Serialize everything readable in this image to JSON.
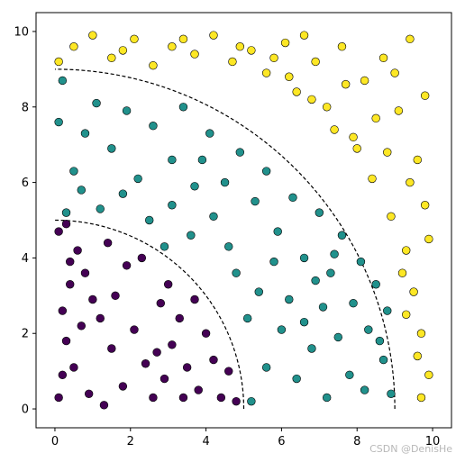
{
  "chart_data": {
    "type": "scatter",
    "title": "",
    "xlabel": "",
    "ylabel": "",
    "xlim": [
      -0.5,
      10.5
    ],
    "ylim": [
      -0.5,
      10.5
    ],
    "x_ticks": [
      0,
      2,
      4,
      6,
      8,
      10
    ],
    "y_ticks": [
      0,
      2,
      4,
      6,
      8,
      10
    ],
    "grid": false,
    "arcs": [
      {
        "radius": 5,
        "center": [
          0,
          0
        ],
        "style": "dashed",
        "color": "#000000"
      },
      {
        "radius": 9,
        "center": [
          0,
          0
        ],
        "style": "dashed",
        "color": "#000000"
      }
    ],
    "series": [
      {
        "color": "#440154",
        "points": [
          [
            0.1,
            0.3
          ],
          [
            0.2,
            0.9
          ],
          [
            0.3,
            1.8
          ],
          [
            0.2,
            2.6
          ],
          [
            0.4,
            3.3
          ],
          [
            0.1,
            4.7
          ],
          [
            0.3,
            4.9
          ],
          [
            0.6,
            4.2
          ],
          [
            0.8,
            3.6
          ],
          [
            1.0,
            2.9
          ],
          [
            0.7,
            2.2
          ],
          [
            0.5,
            1.1
          ],
          [
            0.9,
            0.4
          ],
          [
            1.3,
            0.1
          ],
          [
            1.5,
            1.6
          ],
          [
            1.2,
            2.4
          ],
          [
            1.6,
            3.0
          ],
          [
            1.9,
            3.8
          ],
          [
            2.1,
            2.1
          ],
          [
            2.4,
            1.2
          ],
          [
            2.6,
            0.3
          ],
          [
            2.9,
            0.8
          ],
          [
            3.1,
            1.7
          ],
          [
            2.8,
            2.8
          ],
          [
            3.3,
            2.4
          ],
          [
            3.0,
            3.3
          ],
          [
            3.5,
            1.1
          ],
          [
            3.8,
            0.5
          ],
          [
            4.0,
            2.0
          ],
          [
            4.2,
            1.3
          ],
          [
            4.4,
            0.3
          ],
          [
            4.6,
            1.0
          ],
          [
            4.8,
            0.2
          ],
          [
            3.7,
            2.9
          ],
          [
            2.3,
            4.0
          ],
          [
            1.4,
            4.4
          ],
          [
            0.4,
            3.9
          ],
          [
            1.8,
            0.6
          ],
          [
            2.7,
            1.5
          ],
          [
            3.4,
            0.3
          ]
        ]
      },
      {
        "color": "#21918c",
        "points": [
          [
            0.1,
            7.6
          ],
          [
            0.2,
            8.7
          ],
          [
            0.5,
            6.3
          ],
          [
            0.8,
            7.3
          ],
          [
            1.1,
            8.1
          ],
          [
            1.5,
            6.9
          ],
          [
            1.9,
            7.9
          ],
          [
            2.2,
            6.1
          ],
          [
            2.6,
            7.5
          ],
          [
            3.1,
            6.6
          ],
          [
            3.4,
            8.0
          ],
          [
            3.7,
            5.9
          ],
          [
            4.1,
            7.3
          ],
          [
            4.5,
            6.0
          ],
          [
            4.9,
            6.8
          ],
          [
            5.3,
            5.5
          ],
          [
            5.6,
            6.3
          ],
          [
            5.9,
            4.7
          ],
          [
            6.3,
            5.6
          ],
          [
            6.6,
            4.0
          ],
          [
            7.0,
            5.2
          ],
          [
            7.3,
            3.6
          ],
          [
            7.6,
            4.6
          ],
          [
            7.9,
            2.8
          ],
          [
            8.1,
            3.9
          ],
          [
            8.3,
            2.1
          ],
          [
            8.5,
            3.3
          ],
          [
            8.7,
            1.3
          ],
          [
            8.8,
            2.6
          ],
          [
            8.9,
            0.4
          ],
          [
            5.2,
            0.2
          ],
          [
            5.6,
            1.1
          ],
          [
            6.0,
            2.1
          ],
          [
            6.4,
            0.8
          ],
          [
            6.8,
            1.6
          ],
          [
            7.2,
            0.3
          ],
          [
            7.5,
            1.9
          ],
          [
            7.8,
            0.9
          ],
          [
            8.2,
            0.5
          ],
          [
            5.4,
            3.1
          ],
          [
            5.8,
            3.9
          ],
          [
            6.2,
            2.9
          ],
          [
            6.6,
            2.3
          ],
          [
            7.1,
            2.7
          ],
          [
            4.6,
            4.3
          ],
          [
            4.2,
            5.1
          ],
          [
            3.6,
            4.6
          ],
          [
            3.1,
            5.4
          ],
          [
            2.5,
            5.0
          ],
          [
            1.8,
            5.7
          ],
          [
            1.2,
            5.3
          ],
          [
            0.7,
            5.8
          ],
          [
            0.3,
            5.2
          ],
          [
            2.9,
            4.3
          ],
          [
            4.8,
            3.6
          ],
          [
            5.1,
            2.4
          ],
          [
            6.9,
            3.4
          ],
          [
            8.6,
            1.8
          ],
          [
            7.4,
            4.1
          ],
          [
            3.9,
            6.6
          ]
        ]
      },
      {
        "color": "#fde725",
        "points": [
          [
            0.1,
            9.2
          ],
          [
            0.5,
            9.6
          ],
          [
            1.0,
            9.9
          ],
          [
            1.5,
            9.3
          ],
          [
            2.1,
            9.8
          ],
          [
            2.6,
            9.1
          ],
          [
            3.1,
            9.6
          ],
          [
            3.7,
            9.4
          ],
          [
            4.2,
            9.9
          ],
          [
            4.7,
            9.2
          ],
          [
            5.2,
            9.5
          ],
          [
            5.6,
            8.9
          ],
          [
            6.1,
            9.7
          ],
          [
            6.4,
            8.4
          ],
          [
            6.9,
            9.2
          ],
          [
            7.2,
            8.0
          ],
          [
            7.6,
            9.6
          ],
          [
            7.9,
            7.2
          ],
          [
            8.2,
            8.7
          ],
          [
            8.4,
            6.1
          ],
          [
            8.7,
            9.3
          ],
          [
            8.9,
            5.1
          ],
          [
            9.1,
            7.9
          ],
          [
            9.3,
            4.2
          ],
          [
            9.4,
            9.8
          ],
          [
            9.5,
            3.1
          ],
          [
            9.6,
            6.6
          ],
          [
            9.7,
            2.0
          ],
          [
            9.8,
            8.3
          ],
          [
            9.9,
            0.9
          ],
          [
            9.8,
            5.4
          ],
          [
            9.6,
            1.4
          ],
          [
            9.2,
            3.6
          ],
          [
            9.4,
            6.0
          ],
          [
            9.0,
            8.9
          ],
          [
            8.5,
            7.7
          ],
          [
            8.0,
            6.9
          ],
          [
            7.4,
            7.4
          ],
          [
            6.8,
            8.2
          ],
          [
            6.2,
            8.8
          ],
          [
            5.8,
            9.3
          ],
          [
            4.9,
            9.6
          ],
          [
            3.4,
            9.8
          ],
          [
            1.8,
            9.5
          ],
          [
            9.9,
            4.5
          ],
          [
            9.7,
            0.3
          ],
          [
            9.3,
            2.5
          ],
          [
            8.8,
            6.8
          ],
          [
            7.7,
            8.6
          ],
          [
            6.6,
            9.9
          ]
        ]
      }
    ]
  },
  "watermark": "CSDN @DenisHe"
}
